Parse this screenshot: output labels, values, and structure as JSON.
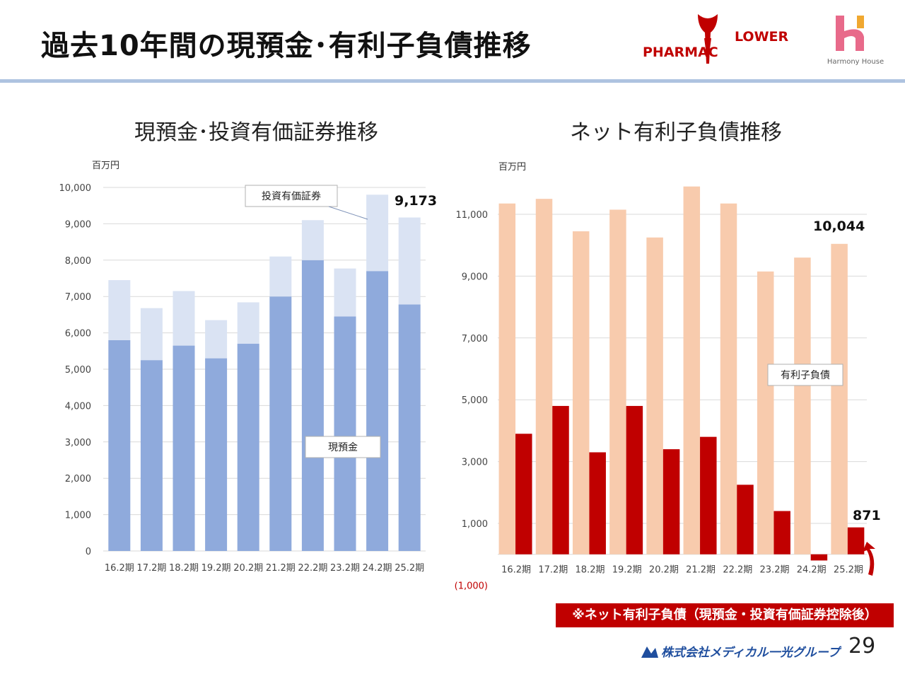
{
  "header": {
    "title": "過去10年間の現預金･有利子負債推移",
    "logo_left_text_a": "PHARMAC",
    "logo_left_text_b": "LOWER",
    "logo_right_text": "Harmony House"
  },
  "chart_data": [
    {
      "type": "bar",
      "stacked": true,
      "title": "現預金･投資有価証券推移",
      "unit_label": "百万円",
      "categories": [
        "16.2期",
        "17.2期",
        "18.2期",
        "19.2期",
        "20.2期",
        "21.2期",
        "22.2期",
        "23.2期",
        "24.2期",
        "25.2期"
      ],
      "series": [
        {
          "name": "現預金",
          "color": "#8faadc",
          "values": [
            5800,
            5250,
            5650,
            5300,
            5700,
            7000,
            8000,
            6450,
            7700,
            6780
          ]
        },
        {
          "name": "投資有価証券",
          "color": "#dae3f3",
          "values": [
            1650,
            1430,
            1500,
            1050,
            1140,
            1100,
            1100,
            1320,
            2100,
            2393
          ]
        }
      ],
      "ylim": [
        0,
        10000
      ],
      "yticks": [
        "0",
        "1,000",
        "2,000",
        "3,000",
        "4,000",
        "5,000",
        "6,000",
        "7,000",
        "8,000",
        "9,000",
        "10,000"
      ],
      "annotations": {
        "last_total": "9,173"
      },
      "grid": true
    },
    {
      "type": "bar",
      "title": "ネット有利子負債推移",
      "unit_label": "百万円",
      "categories": [
        "16.2期",
        "17.2期",
        "18.2期",
        "19.2期",
        "20.2期",
        "21.2期",
        "22.2期",
        "23.2期",
        "24.2期",
        "25.2期"
      ],
      "series": [
        {
          "name": "有利子負債",
          "color": "#f8cbad",
          "values": [
            11350,
            11500,
            10450,
            11150,
            10250,
            11900,
            11350,
            9150,
            9600,
            10044
          ]
        },
        {
          "color": "#c00000",
          "values": [
            3900,
            4800,
            3300,
            4800,
            3400,
            3800,
            2250,
            1400,
            -200,
            871
          ]
        }
      ],
      "ylim": [
        -1000,
        12000
      ],
      "yticks": [
        "(1,000)",
        "1,000",
        "3,000",
        "5,000",
        "7,000",
        "9,000",
        "11,000"
      ],
      "annotations": {
        "last_debt": "10,044",
        "last_net": "871"
      },
      "note": "※ネット有利子負債（現預金・投資有価証券控除後）"
    }
  ],
  "footer": {
    "company": "株式会社メディカル一光グループ",
    "page_number": "29"
  },
  "colors": {
    "accent_red": "#c00000",
    "rule": "#aec3e0"
  }
}
